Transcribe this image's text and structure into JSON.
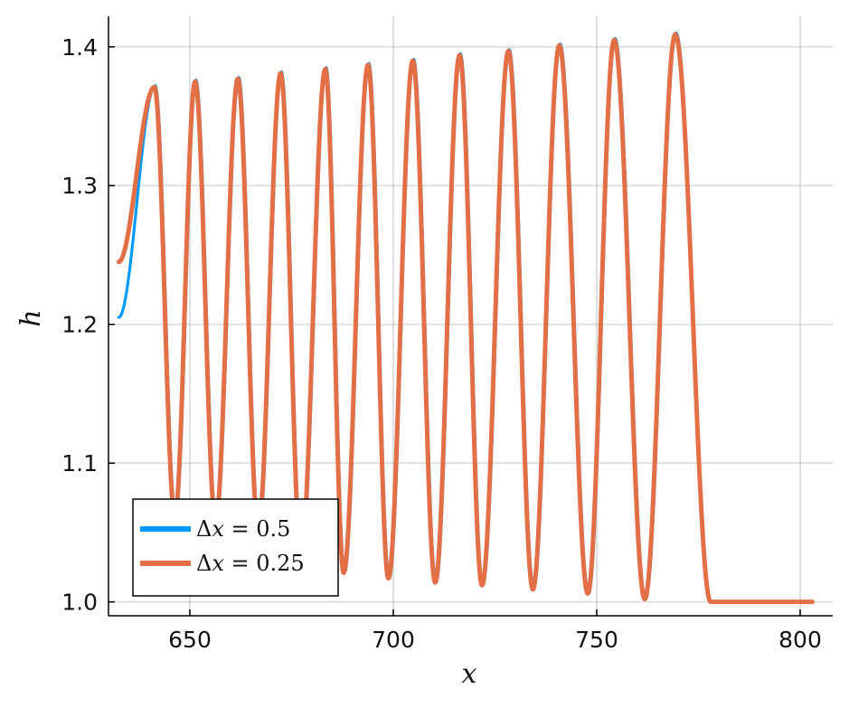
{
  "chart_data": {
    "type": "line",
    "title": "",
    "xlabel": "x",
    "ylabel": "h",
    "xlim": [
      630,
      808
    ],
    "ylim": [
      0.99,
      1.422
    ],
    "xticks": [
      650,
      700,
      750,
      800
    ],
    "yticks": [
      1.0,
      1.1,
      1.2,
      1.3,
      1.4
    ],
    "xtick_labels": [
      "650",
      "700",
      "750",
      "800"
    ],
    "ytick_labels": [
      "1.0",
      "1.1",
      "1.2",
      "1.3",
      "1.4"
    ],
    "grid": true,
    "legend_position": "bottom-left",
    "series": [
      {
        "name": "Δx = 0.5",
        "legend": {
          "symbol": "Δ",
          "var": "x",
          "rest": " = 0.5"
        },
        "color": "#009AFA",
        "start": [
          632.5,
          1.205
        ],
        "peaks": [
          [
            641.5,
            1.372
          ],
          [
            651.5,
            1.376
          ],
          [
            662,
            1.378
          ],
          [
            672.5,
            1.382
          ],
          [
            683.5,
            1.385
          ],
          [
            694,
            1.388
          ],
          [
            705,
            1.391
          ],
          [
            716.5,
            1.395
          ],
          [
            728.5,
            1.398
          ],
          [
            741,
            1.402
          ],
          [
            754.5,
            1.406
          ],
          [
            769.5,
            1.41
          ]
        ],
        "troughs": [
          [
            646.5,
            1.062
          ],
          [
            656.5,
            1.058
          ],
          [
            667,
            1.052
          ],
          [
            677.5,
            1.035
          ],
          [
            688,
            1.021
          ],
          [
            699,
            1.017
          ],
          [
            710.5,
            1.014
          ],
          [
            722,
            1.012
          ],
          [
            734.5,
            1.009
          ],
          [
            748,
            1.006
          ],
          [
            762,
            1.002
          ]
        ],
        "tail": [
          [
            778,
            1.0
          ],
          [
            803,
            1.0
          ]
        ]
      },
      {
        "name": "Δx = 0.25",
        "legend": {
          "symbol": "Δ",
          "var": "x",
          "rest": " = 0.25"
        },
        "color": "#E26F46",
        "start": [
          632.5,
          1.245
        ],
        "peaks": [
          [
            641.3,
            1.371
          ],
          [
            651.3,
            1.375
          ],
          [
            661.8,
            1.377
          ],
          [
            672.3,
            1.381
          ],
          [
            683.3,
            1.384
          ],
          [
            693.8,
            1.387
          ],
          [
            704.8,
            1.39
          ],
          [
            716.3,
            1.394
          ],
          [
            728.3,
            1.397
          ],
          [
            740.8,
            1.401
          ],
          [
            754.3,
            1.405
          ],
          [
            769.3,
            1.409
          ]
        ],
        "troughs": [
          [
            646.3,
            1.062
          ],
          [
            656.3,
            1.058
          ],
          [
            666.8,
            1.052
          ],
          [
            677.3,
            1.035
          ],
          [
            687.8,
            1.021
          ],
          [
            698.8,
            1.017
          ],
          [
            710.3,
            1.014
          ],
          [
            721.8,
            1.012
          ],
          [
            734.3,
            1.009
          ],
          [
            747.8,
            1.006
          ],
          [
            761.8,
            1.002
          ]
        ],
        "tail": [
          [
            778,
            1.0
          ],
          [
            803,
            1.0
          ]
        ]
      }
    ]
  }
}
